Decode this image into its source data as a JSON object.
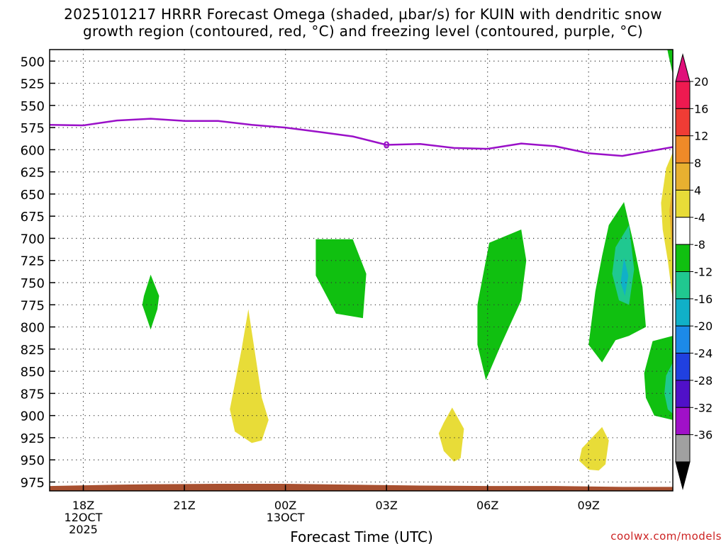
{
  "title": {
    "line1": "2025101217 HRRR Forecast Omega (shaded, µbar/s) for KUIN with dendritic snow",
    "line2": "growth region (contoured, red, °C) and freezing level (contoured, purple, °C)"
  },
  "credit": "coolwx.com/models",
  "chart_data": {
    "type": "contour",
    "title": "2025101217 HRRR Forecast Omega (shaded, µbar/s) for KUIN with dendritic snow growth region (contoured, red, °C) and freezing level (contoured, purple, °C)",
    "xlabel": "Forecast Time (UTC)",
    "ylabel": "",
    "x_range_hours": [
      -1,
      17.5
    ],
    "y_range_hPa": [
      985,
      487
    ],
    "y_ticks": [
      500,
      525,
      550,
      575,
      600,
      625,
      650,
      675,
      700,
      725,
      750,
      775,
      800,
      825,
      850,
      875,
      900,
      925,
      950,
      975
    ],
    "x_ticks": [
      {
        "hour": 0,
        "lines": [
          "18Z",
          "12OCT",
          "2025"
        ]
      },
      {
        "hour": 3,
        "lines": [
          "21Z"
        ]
      },
      {
        "hour": 6,
        "lines": [
          "00Z",
          "13OCT"
        ]
      },
      {
        "hour": 9,
        "lines": [
          "03Z"
        ]
      },
      {
        "hour": 12,
        "lines": [
          "06Z"
        ]
      },
      {
        "hour": 15,
        "lines": [
          "09Z"
        ]
      }
    ],
    "grid": "dotted",
    "colorbar": {
      "labels": [
        "20",
        "16",
        "12",
        "8",
        "4",
        "-4",
        "-8",
        "-12",
        "-16",
        "-20",
        "-24",
        "-28",
        "-32",
        "-36"
      ],
      "colors": [
        "#ee1a50",
        "#f03c35",
        "#ef8a28",
        "#e8b030",
        "#e8dc38",
        "#ffffff",
        "#10c010",
        "#20c890",
        "#10b0c8",
        "#1c8ae8",
        "#2040e0",
        "#5010c8",
        "#a010c8",
        "#a0a0a0"
      ],
      "top_color": "#e0107a",
      "bottom_color": "#000000"
    },
    "freezing_level": {
      "label": "0",
      "label_hour": 9,
      "color": "#9a10c8",
      "points": [
        [
          -1,
          572
        ],
        [
          0,
          572.5
        ],
        [
          1,
          567
        ],
        [
          2,
          565
        ],
        [
          3,
          567.5
        ],
        [
          4,
          567.5
        ],
        [
          5,
          572
        ],
        [
          6,
          575
        ],
        [
          7,
          580
        ],
        [
          8,
          585
        ],
        [
          9,
          594.5
        ],
        [
          10,
          593.5
        ],
        [
          11,
          598
        ],
        [
          12,
          599
        ],
        [
          13,
          593
        ],
        [
          14,
          596
        ],
        [
          15,
          604
        ],
        [
          16,
          607
        ],
        [
          17.5,
          597
        ]
      ]
    },
    "omega_regions": [
      {
        "name": "omega-positive-4-8-a",
        "color": "#e8dc38",
        "points": [
          [
            4.9,
            780
          ],
          [
            5.3,
            880
          ],
          [
            5.5,
            905
          ],
          [
            5.3,
            928
          ],
          [
            5.0,
            931
          ],
          [
            4.5,
            918
          ],
          [
            4.35,
            893
          ],
          [
            4.7,
            825
          ]
        ]
      },
      {
        "name": "omega-positive-4-8-b",
        "color": "#e8dc38",
        "points": [
          [
            10.95,
            891
          ],
          [
            11.3,
            915
          ],
          [
            11.2,
            948
          ],
          [
            11.0,
            952
          ],
          [
            10.7,
            940
          ],
          [
            10.55,
            920
          ],
          [
            10.7,
            908
          ]
        ]
      },
      {
        "name": "omega-positive-4-8-c",
        "color": "#e8dc38",
        "points": [
          [
            14.8,
            937
          ],
          [
            15.2,
            921
          ],
          [
            15.4,
            913
          ],
          [
            15.6,
            928
          ],
          [
            15.5,
            955
          ],
          [
            15.3,
            962
          ],
          [
            15.0,
            961
          ],
          [
            14.72,
            951
          ]
        ]
      },
      {
        "name": "omega-positive-4-8-d",
        "color": "#e8dc38",
        "points": [
          [
            17.5,
            603
          ],
          [
            17.3,
            621
          ],
          [
            17.15,
            660
          ],
          [
            17.2,
            690
          ],
          [
            17.35,
            725
          ],
          [
            17.5,
            770
          ]
        ]
      },
      {
        "name": "omega-negative-4-8-a",
        "color": "#10c010",
        "points": [
          [
            2.0,
            741
          ],
          [
            2.25,
            765
          ],
          [
            2.2,
            780
          ],
          [
            2.0,
            803
          ],
          [
            1.75,
            775
          ],
          [
            1.8,
            765
          ]
        ]
      },
      {
        "name": "omega-negative-4-8-b",
        "color": "#10c010",
        "points": [
          [
            6.9,
            701
          ],
          [
            8.0,
            701
          ],
          [
            8.4,
            740
          ],
          [
            8.3,
            790
          ],
          [
            7.5,
            785
          ],
          [
            6.9,
            742
          ]
        ]
      },
      {
        "name": "omega-negative-4-8-c",
        "color": "#10c010",
        "points": [
          [
            12.05,
            705
          ],
          [
            13.0,
            690
          ],
          [
            13.15,
            725
          ],
          [
            13.0,
            770
          ],
          [
            12.4,
            820
          ],
          [
            11.95,
            860
          ],
          [
            11.7,
            820
          ],
          [
            11.7,
            775
          ],
          [
            11.9,
            735
          ]
        ]
      },
      {
        "name": "omega-negative-4-8-d",
        "color": "#10c010",
        "points": [
          [
            15.6,
            685
          ],
          [
            16.05,
            659
          ],
          [
            16.3,
            700
          ],
          [
            16.6,
            755
          ],
          [
            16.7,
            800
          ],
          [
            16.2,
            810
          ],
          [
            15.8,
            815
          ],
          [
            15.4,
            840
          ],
          [
            15.0,
            820
          ],
          [
            15.2,
            760
          ],
          [
            15.4,
            720
          ]
        ]
      },
      {
        "name": "omega-negative-4-8-e",
        "color": "#10c010",
        "points": [
          [
            17.5,
            810
          ],
          [
            16.9,
            816
          ],
          [
            16.65,
            852
          ],
          [
            16.7,
            880
          ],
          [
            16.95,
            900
          ],
          [
            17.5,
            905
          ]
        ]
      },
      {
        "name": "omega-negative-4-8-f",
        "color": "#10c010",
        "points": [
          [
            17.3,
            480
          ],
          [
            17.5,
            485
          ],
          [
            17.5,
            515
          ],
          [
            17.38,
            495
          ]
        ]
      },
      {
        "name": "omega-negative-8-12-a",
        "color": "#20c890",
        "points": [
          [
            16.2,
            685
          ],
          [
            16.35,
            735
          ],
          [
            16.2,
            775
          ],
          [
            15.9,
            770
          ],
          [
            15.7,
            740
          ],
          [
            15.8,
            710
          ]
        ]
      },
      {
        "name": "omega-negative-8-12-b",
        "color": "#20c890",
        "points": [
          [
            17.5,
            840
          ],
          [
            17.3,
            855
          ],
          [
            17.25,
            875
          ],
          [
            17.35,
            893
          ],
          [
            17.5,
            898
          ]
        ]
      },
      {
        "name": "omega-negative-12-16-a",
        "color": "#10b0c8",
        "points": [
          [
            16.05,
            722
          ],
          [
            16.18,
            742
          ],
          [
            16.08,
            765
          ],
          [
            15.95,
            750
          ]
        ]
      },
      {
        "name": "omega-positive-8-12-a",
        "color": "#e8b030",
        "points": [
          [
            17.5,
            640
          ],
          [
            17.4,
            668
          ],
          [
            17.45,
            700
          ],
          [
            17.5,
            722
          ]
        ]
      }
    ],
    "terrain": {
      "color": "#a85030",
      "points": [
        [
          -1,
          979.5
        ],
        [
          1,
          978
        ],
        [
          2,
          977.5
        ],
        [
          4,
          977
        ],
        [
          6,
          977
        ],
        [
          8,
          978
        ],
        [
          10,
          979
        ],
        [
          12,
          979.5
        ],
        [
          14,
          979.5
        ],
        [
          15,
          980
        ],
        [
          16,
          980.5
        ],
        [
          17.5,
          980.5
        ]
      ]
    }
  }
}
